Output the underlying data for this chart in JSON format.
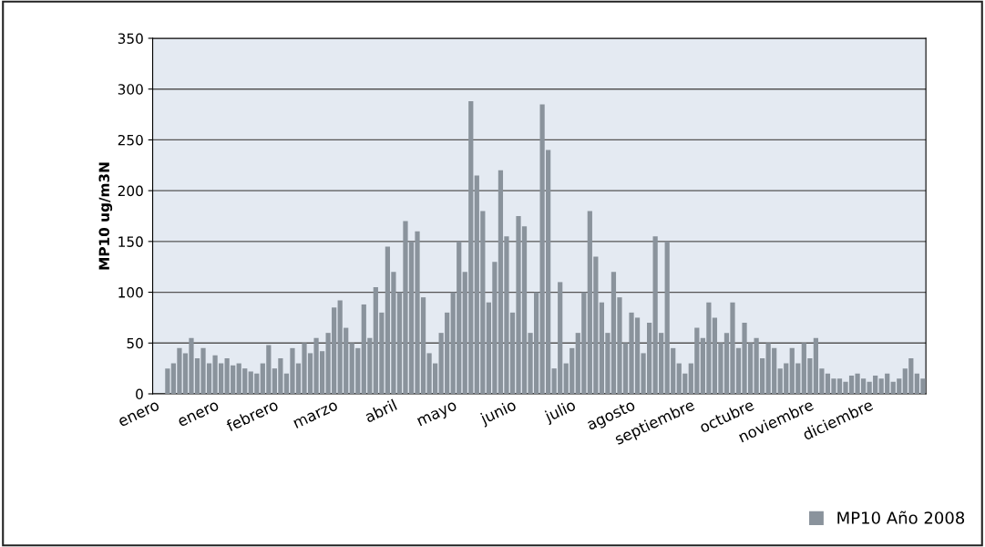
{
  "chart_data": {
    "type": "bar",
    "ylabel": "MP10 ug/m3N",
    "categories": [
      "enero",
      null,
      null,
      null,
      null,
      null,
      null,
      null,
      null,
      null,
      "enero",
      null,
      null,
      null,
      null,
      null,
      null,
      null,
      null,
      null,
      "febrero",
      null,
      null,
      null,
      null,
      null,
      null,
      null,
      null,
      null,
      "marzo",
      null,
      null,
      null,
      null,
      null,
      null,
      null,
      null,
      null,
      "abril",
      null,
      null,
      null,
      null,
      null,
      null,
      null,
      null,
      null,
      "mayo",
      null,
      null,
      null,
      null,
      null,
      null,
      null,
      null,
      null,
      "junio",
      null,
      null,
      null,
      null,
      null,
      null,
      null,
      null,
      null,
      "julio",
      null,
      null,
      null,
      null,
      null,
      null,
      null,
      null,
      null,
      "agosto",
      null,
      null,
      null,
      null,
      null,
      null,
      null,
      null,
      null,
      "septiembre",
      null,
      null,
      null,
      null,
      null,
      null,
      null,
      null,
      null,
      "octubre",
      null,
      null,
      null,
      null,
      null,
      null,
      null,
      null,
      null,
      "noviembre",
      null,
      null,
      null,
      null,
      null,
      null,
      null,
      null,
      null,
      "diciembre",
      null,
      null,
      null,
      null,
      null,
      null,
      null,
      null,
      null
    ],
    "series": [
      {
        "name": "MP10 Año 2008",
        "color": "#8a939c",
        "values": [
          null,
          null,
          25,
          30,
          45,
          40,
          55,
          35,
          45,
          30,
          38,
          30,
          35,
          28,
          30,
          25,
          22,
          20,
          30,
          48,
          25,
          35,
          20,
          45,
          30,
          50,
          40,
          55,
          42,
          60,
          85,
          92,
          65,
          50,
          45,
          88,
          55,
          105,
          80,
          145,
          120,
          100,
          170,
          150,
          160,
          95,
          40,
          30,
          60,
          80,
          100,
          150,
          120,
          288,
          215,
          180,
          90,
          130,
          220,
          155,
          80,
          175,
          165,
          60,
          100,
          285,
          240,
          25,
          110,
          30,
          45,
          60,
          100,
          180,
          135,
          90,
          60,
          120,
          95,
          50,
          80,
          75,
          40,
          70,
          155,
          60,
          150,
          45,
          30,
          20,
          30,
          65,
          55,
          90,
          75,
          50,
          60,
          90,
          45,
          70,
          50,
          55,
          35,
          50,
          45,
          25,
          30,
          45,
          30,
          50,
          35,
          55,
          25,
          20,
          15,
          15,
          12,
          18,
          20,
          15,
          12,
          18,
          15,
          20,
          12,
          15,
          25,
          35,
          20,
          15
        ]
      }
    ],
    "ylim": [
      0,
      350
    ],
    "yticks": [
      0,
      50,
      100,
      150,
      200,
      250,
      300,
      350
    ],
    "grid": "y",
    "legend": "bottom right"
  }
}
